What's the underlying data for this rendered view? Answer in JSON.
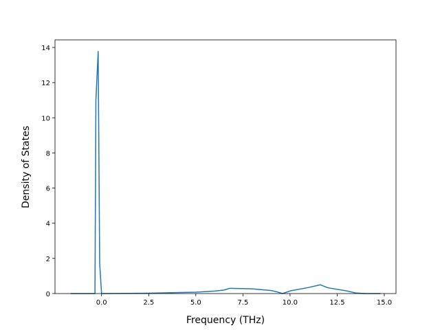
{
  "chart_data": {
    "type": "line",
    "xlabel": "Frequency (THz)",
    "ylabel": "Density of States",
    "xlim": [
      -2.47,
      15.62
    ],
    "ylim": [
      0,
      14.43
    ],
    "xticks": [
      {
        "value": 0,
        "label": "0.0"
      },
      {
        "value": 2.5,
        "label": "2.5"
      },
      {
        "value": 5,
        "label": "5.0"
      },
      {
        "value": 7.5,
        "label": "7.5"
      },
      {
        "value": 10,
        "label": "10.0"
      },
      {
        "value": 12.5,
        "label": "12.5"
      },
      {
        "value": 15,
        "label": "15.0"
      }
    ],
    "yticks": [
      0,
      2,
      4,
      6,
      8,
      10,
      12,
      14
    ],
    "series": [
      {
        "color": "#1f77b4",
        "x": [
          -1.65,
          -0.35,
          -0.3,
          -0.18,
          -0.1,
          0.0,
          2.5,
          5.0,
          6.0,
          6.5,
          6.8,
          8.0,
          9.0,
          9.3,
          9.6,
          10.0,
          11.0,
          11.6,
          12.0,
          13.0,
          13.5,
          14.0,
          14.8
        ],
        "values": [
          0,
          0,
          11.0,
          13.77,
          1.72,
          0,
          0.02,
          0.08,
          0.14,
          0.2,
          0.3,
          0.27,
          0.17,
          0.1,
          0.0,
          0.15,
          0.35,
          0.5,
          0.33,
          0.15,
          0.03,
          0,
          0
        ]
      }
    ]
  }
}
